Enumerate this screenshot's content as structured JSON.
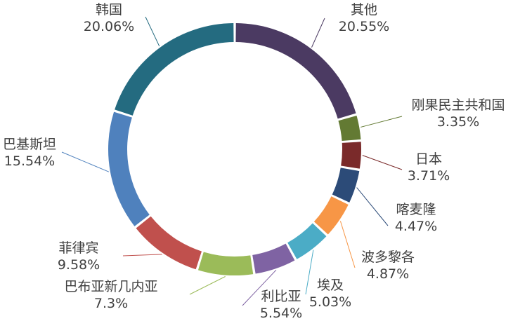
{
  "chart_data": {
    "type": "pie",
    "variant": "donut",
    "title": "",
    "legend": "none",
    "categories": [
      "其他",
      "刚果民主共和国",
      "日本",
      "喀麦隆",
      "波多黎各",
      "埃及",
      "利比亚",
      "巴布亚新几内亚",
      "菲律宾",
      "巴基斯坦",
      "韩国"
    ],
    "values": [
      20.55,
      3.35,
      3.71,
      4.47,
      4.87,
      5.03,
      5.54,
      7.3,
      9.58,
      15.54,
      20.06
    ],
    "value_labels": [
      "20.55%",
      "3.35%",
      "3.71%",
      "4.47%",
      "4.87%",
      "5.03%",
      "5.54%",
      "7.3%",
      "9.58%",
      "15.54%",
      "20.06%"
    ],
    "colors": [
      "#4B3A62",
      "#637A33",
      "#7A2A2A",
      "#2C4B78",
      "#F79646",
      "#4BACC6",
      "#7F63A3",
      "#9BBB59",
      "#C0504D",
      "#4F81BD",
      "#246B80"
    ]
  }
}
